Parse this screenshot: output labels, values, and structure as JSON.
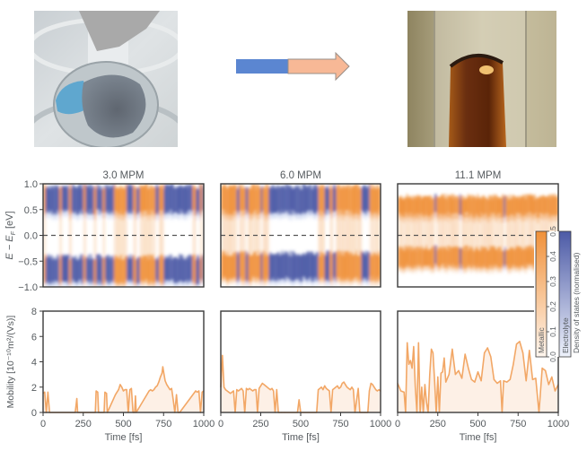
{
  "photos": {
    "left": {
      "description_icon": "flask-photo"
    },
    "right": {
      "description_icon": "tube-photo"
    }
  },
  "arrow": {
    "left_color": "#5b86d1",
    "right_color": "#f7b896"
  },
  "colors": {
    "metallic": "#f0913a",
    "electrolyte": "#4c5aa6",
    "axis": "#3a3a3a",
    "text": "#555a5e",
    "mobility_line": "#f2a766",
    "mobility_fill": "#fdf0e6"
  },
  "chart_data": [
    {
      "type": "heatmap",
      "title": "3.0 MPM",
      "xlabel": "",
      "ylabel": "E − E_F [eV]",
      "ylabel_main": "E − E",
      "ylabel_sub": "F",
      "ylabel_unit": " [eV]",
      "xlim": [
        0,
        1000
      ],
      "ylim": [
        -1.0,
        1.0
      ],
      "yticks": [
        "1.0",
        "0.5",
        "0.0",
        "−0.5",
        "−1.0"
      ],
      "ytick_values": [
        1.0,
        0.5,
        0.0,
        -0.5,
        -1.0
      ],
      "fermi_line": 0.0,
      "band_upper": [
        0.45,
        0.95
      ],
      "band_lower": [
        -0.9,
        -0.42
      ],
      "segments_metallic": [
        [
          0,
          12
        ],
        [
          100,
          115
        ],
        [
          160,
          175
        ],
        [
          250,
          262
        ],
        [
          315,
          330
        ],
        [
          370,
          385
        ],
        [
          440,
          520
        ],
        [
          560,
          580
        ],
        [
          600,
          700
        ],
        [
          720,
          750
        ],
        [
          930,
          950
        ],
        [
          975,
          990
        ]
      ]
    },
    {
      "type": "heatmap",
      "title": "6.0 MPM",
      "xlim": [
        0,
        1000
      ],
      "ylim": [
        -1.0,
        1.0
      ],
      "fermi_line": 0.0,
      "band_upper": [
        0.45,
        0.95
      ],
      "band_lower": [
        -0.85,
        -0.35
      ],
      "segments_metallic": [
        [
          0,
          100
        ],
        [
          115,
          155
        ],
        [
          170,
          250
        ],
        [
          260,
          300
        ],
        [
          610,
          650
        ],
        [
          680,
          700
        ],
        [
          720,
          880
        ],
        [
          930,
          1000
        ]
      ]
    },
    {
      "type": "heatmap",
      "title": "11.1 MPM",
      "xlim": [
        0,
        1000
      ],
      "ylim": [
        -1.0,
        1.0
      ],
      "fermi_line": 0.0,
      "band_upper": [
        0.4,
        0.75
      ],
      "band_lower": [
        -0.6,
        -0.25
      ],
      "segments_electrolyte": [
        [
          230,
          240
        ],
        [
          385,
          395
        ],
        [
          660,
          670
        ]
      ]
    },
    {
      "type": "line",
      "title": "",
      "xlabel": "Time [fs]",
      "ylabel": "Mobility [10⁻¹⁰m²/(Vs)]",
      "ylim": [
        0,
        8
      ],
      "xlim": [
        0,
        1000
      ],
      "yticks": [
        "0",
        "2",
        "4",
        "6",
        "8"
      ],
      "ytick_values": [
        0,
        2,
        4,
        6,
        8
      ],
      "xticks": [
        "0",
        "250",
        "500",
        "750",
        "1000"
      ],
      "xtick_values": [
        0,
        250,
        500,
        750,
        1000
      ],
      "x": [
        0,
        10,
        20,
        30,
        40,
        200,
        210,
        215,
        325,
        330,
        340,
        345,
        380,
        385,
        395,
        400,
        450,
        460,
        470,
        480,
        490,
        500,
        510,
        520,
        530,
        540,
        550,
        560,
        570,
        575,
        580,
        660,
        670,
        680,
        690,
        700,
        710,
        720,
        730,
        740,
        745,
        750,
        760,
        770,
        780,
        790,
        800,
        810,
        820,
        830,
        840,
        850,
        950,
        960,
        970,
        980,
        990,
        1000
      ],
      "y": [
        1.5,
        1.6,
        0,
        1.6,
        0,
        0,
        1.1,
        0,
        0,
        1.7,
        1.6,
        0,
        0,
        1.6,
        1.5,
        0,
        1.4,
        1.6,
        1.8,
        2.2,
        2.0,
        1.7,
        1.8,
        1.8,
        0,
        1.8,
        1.9,
        0,
        0,
        1.3,
        0,
        1.7,
        1.8,
        1.7,
        1.8,
        2.0,
        2.1,
        2.4,
        2.8,
        3.1,
        3.6,
        3.2,
        2.5,
        2.2,
        2.0,
        1.8,
        1.9,
        1.0,
        0,
        1.4,
        0,
        0,
        1.7,
        1.6,
        1.7,
        0,
        1.6,
        1.7
      ]
    },
    {
      "type": "line",
      "xlabel": "Time [fs]",
      "ylim": [
        0,
        8
      ],
      "xlim": [
        0,
        1000
      ],
      "xticks": [
        "0",
        "250",
        "500",
        "750",
        "1000"
      ],
      "xtick_values": [
        0,
        250,
        500,
        750,
        1000
      ],
      "x": [
        0,
        10,
        20,
        30,
        40,
        60,
        80,
        90,
        100,
        110,
        120,
        130,
        140,
        150,
        160,
        170,
        180,
        190,
        200,
        210,
        220,
        230,
        240,
        250,
        260,
        270,
        280,
        290,
        300,
        310,
        320,
        330,
        340,
        350,
        360,
        380,
        400,
        480,
        490,
        500,
        600,
        610,
        620,
        630,
        640,
        650,
        660,
        670,
        680,
        690,
        700,
        710,
        720,
        730,
        740,
        750,
        760,
        770,
        780,
        790,
        800,
        810,
        820,
        830,
        840,
        860,
        870,
        880,
        900,
        920,
        930,
        940,
        950,
        960,
        970,
        980,
        990,
        1000
      ],
      "y": [
        2.0,
        4.5,
        2.0,
        1.8,
        1.7,
        1.5,
        1.7,
        0,
        1.8,
        1.7,
        1.8,
        1.9,
        1.7,
        0,
        1.9,
        1.8,
        1.9,
        1.8,
        1.7,
        1.8,
        1.8,
        0,
        1.9,
        2.1,
        2.3,
        2.2,
        2.1,
        2.0,
        1.9,
        1.8,
        1.9,
        1.7,
        0,
        1.8,
        0,
        0,
        0,
        0,
        1.0,
        0,
        0,
        1.8,
        1.9,
        2.0,
        1.8,
        2.1,
        1.9,
        1.8,
        1.7,
        0,
        1.8,
        1.9,
        2.0,
        2.1,
        1.9,
        2.0,
        2.3,
        2.4,
        2.2,
        2.0,
        1.9,
        1.8,
        2.0,
        1.8,
        0,
        1.9,
        0,
        0,
        0,
        0,
        1.7,
        2.3,
        2.2,
        2.0,
        1.8,
        1.7,
        1.8,
        1.7
      ]
    },
    {
      "type": "line",
      "xlabel": "Time [fs]",
      "ylim": [
        0,
        8
      ],
      "xlim": [
        0,
        1000
      ],
      "xticks": [
        "0",
        "250",
        "500",
        "750",
        "1000"
      ],
      "xtick_values": [
        0,
        250,
        500,
        750,
        1000
      ],
      "x": [
        0,
        20,
        40,
        50,
        60,
        70,
        80,
        90,
        100,
        110,
        120,
        130,
        140,
        150,
        160,
        170,
        180,
        190,
        200,
        210,
        220,
        230,
        240,
        250,
        260,
        270,
        280,
        290,
        300,
        320,
        340,
        350,
        360,
        380,
        400,
        420,
        440,
        460,
        480,
        500,
        520,
        540,
        560,
        580,
        600,
        620,
        640,
        650,
        660,
        680,
        700,
        720,
        740,
        760,
        780,
        800,
        820,
        840,
        860,
        880,
        900,
        920,
        940,
        960,
        980,
        1000
      ],
      "y": [
        2.3,
        1.7,
        1.6,
        0,
        5.5,
        3.8,
        4.1,
        3.5,
        5.2,
        2.0,
        0,
        5.5,
        0,
        2.0,
        0,
        2.2,
        0.8,
        0,
        3.0,
        5.0,
        4.7,
        2.5,
        0,
        2.8,
        0,
        3.1,
        3.2,
        4.3,
        2.4,
        3.0,
        5.0,
        4.0,
        3.0,
        3.3,
        2.7,
        4.6,
        3.5,
        2.6,
        2.4,
        3.2,
        2.5,
        4.7,
        5.1,
        4.4,
        2.6,
        2.3,
        2.5,
        0,
        2.5,
        2.4,
        2.6,
        3.8,
        5.4,
        5.6,
        4.7,
        2.5,
        4.9,
        2.6,
        2.7,
        0,
        3.5,
        3.3,
        2.2,
        2.8,
        1.7,
        2.2
      ]
    },
    {
      "type": "colorbar",
      "label": "Density of states (normalised)",
      "series_labels": [
        "Metallic",
        "Electrolyte"
      ],
      "ticks": [
        "0.0",
        "0.1",
        "0.2",
        "0.3",
        "0.4",
        "0.5"
      ],
      "tick_values": [
        0.0,
        0.1,
        0.2,
        0.3,
        0.4,
        0.5
      ],
      "range": [
        0.0,
        0.5
      ]
    }
  ]
}
